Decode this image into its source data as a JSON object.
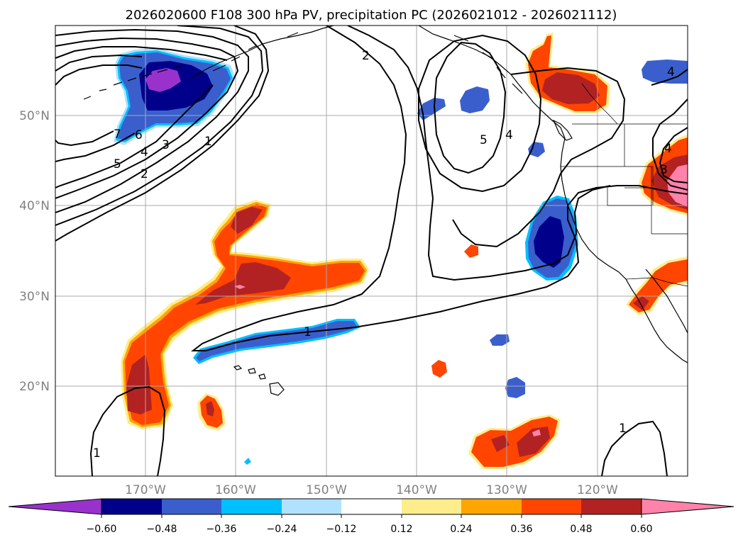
{
  "figure": {
    "title": "2026020600 F108 300 hPa PV, precipitation PC (2026021012 - 2026021112)"
  },
  "map": {
    "projection": "PlateCarree",
    "lon_range": [
      -180,
      -110
    ],
    "lat_range": [
      10,
      60
    ],
    "lon_ticks": [
      {
        "value": -170,
        "label": "170°W"
      },
      {
        "value": -160,
        "label": "160°W"
      },
      {
        "value": -150,
        "label": "150°W"
      },
      {
        "value": -140,
        "label": "140°W"
      },
      {
        "value": -130,
        "label": "130°W"
      },
      {
        "value": -120,
        "label": "120°W"
      }
    ],
    "lat_ticks": [
      {
        "value": 20,
        "label": "20°N"
      },
      {
        "value": 30,
        "label": "30°N"
      },
      {
        "value": 40,
        "label": "40°N"
      },
      {
        "value": 50,
        "label": "50°N"
      }
    ]
  },
  "colorbar": {
    "levels": [
      -0.72,
      -0.6,
      -0.48,
      -0.36,
      -0.24,
      -0.12,
      0.12,
      0.24,
      0.36,
      0.48,
      0.6,
      0.72
    ],
    "tick_labels": [
      "−0.60",
      "−0.48",
      "−0.36",
      "−0.24",
      "−0.12",
      "0.12",
      "0.24",
      "0.36",
      "0.48",
      "0.60"
    ],
    "colors": {
      "under": "#9932cc",
      "n060": "#00008b",
      "n048": "#3a5fcd",
      "n036": "#00bfff",
      "n024": "#b0e2ff",
      "n012": "#ffffff",
      "p012": "#ffec8b",
      "p024": "#ffa500",
      "p036": "#ff4500",
      "p048": "#b22222",
      "over": "#ff82ab"
    }
  },
  "contours": {
    "field": "300 hPa PV",
    "label_values": [
      "1",
      "2",
      "3",
      "4",
      "5",
      "6",
      "7"
    ]
  }
}
